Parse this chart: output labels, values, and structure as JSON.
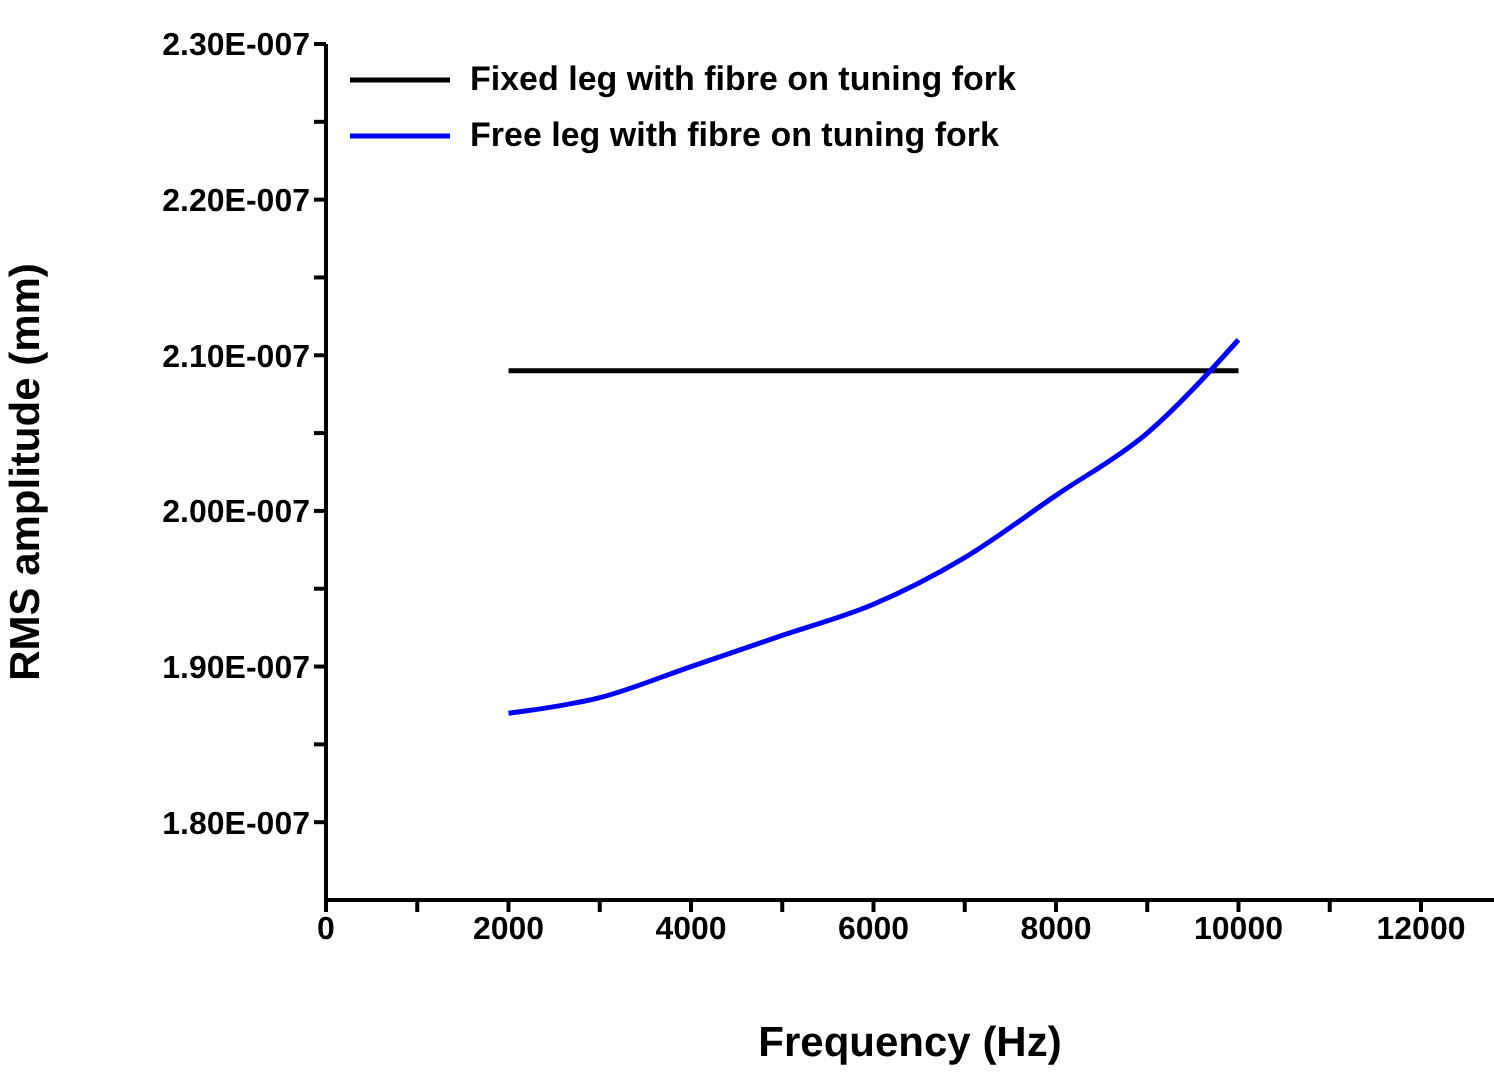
{
  "chart_data": {
    "type": "line",
    "xlabel": "Frequency (Hz)",
    "ylabel": "RMS amplitude (mm)",
    "xlim": [
      0,
      12800
    ],
    "xticks": [
      0,
      {
        "value": 1000,
        "label": null
      },
      2000,
      {
        "value": 3000,
        "label": null
      },
      4000,
      {
        "value": 5000,
        "label": null
      },
      6000,
      {
        "value": 7000,
        "label": null
      },
      8000,
      {
        "value": 9000,
        "label": null
      },
      10000,
      {
        "value": 11000,
        "label": null
      },
      12000
    ],
    "ylim": [
      1.75e-07,
      2.3e-07
    ],
    "yticks": [
      {
        "value": 1.8e-07,
        "label": "1.80E-007"
      },
      {
        "value": 1.85e-07,
        "label": null
      },
      {
        "value": 1.9e-07,
        "label": "1.90E-007"
      },
      {
        "value": 1.95e-07,
        "label": null
      },
      {
        "value": 2e-07,
        "label": "2.00E-007"
      },
      {
        "value": 2.05e-07,
        "label": null
      },
      {
        "value": 2.1e-07,
        "label": "2.10E-007"
      },
      {
        "value": 2.15e-07,
        "label": null
      },
      {
        "value": 2.2e-07,
        "label": "2.20E-007"
      },
      {
        "value": 2.25e-07,
        "label": null
      },
      {
        "value": 2.3e-07,
        "label": "2.30E-007"
      }
    ],
    "x": [
      2000,
      3000,
      4000,
      5000,
      6000,
      7000,
      8000,
      9000,
      10000
    ],
    "series": [
      {
        "name": "Fixed leg with fibre on tuning fork",
        "color": "#000000",
        "values": [
          2.09e-07,
          2.09e-07,
          2.09e-07,
          2.09e-07,
          2.09e-07,
          2.09e-07,
          2.09e-07,
          2.09e-07,
          2.09e-07
        ]
      },
      {
        "name": "Free leg with fibre on tuning fork",
        "color": "#0000ff",
        "values": [
          1.87e-07,
          1.88e-07,
          1.9e-07,
          1.92e-07,
          1.94e-07,
          1.97e-07,
          2.01e-07,
          2.05e-07,
          2.11e-07
        ]
      }
    ],
    "legend": "top left",
    "grid": false,
    "marker": "none",
    "line_style": "solid"
  }
}
